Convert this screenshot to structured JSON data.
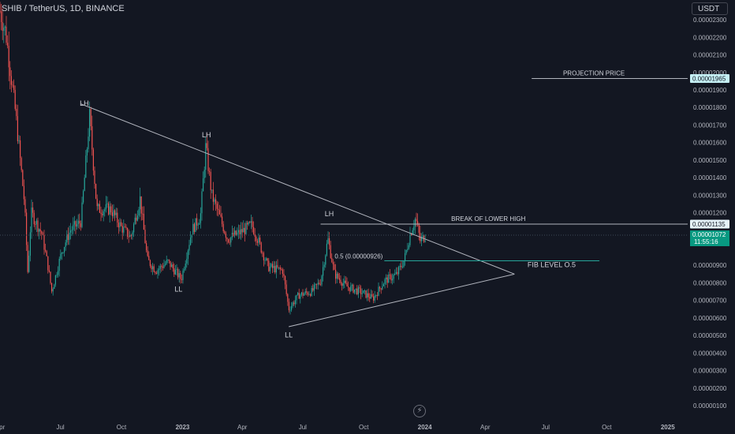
{
  "header": {
    "symbol": "SHIB / TetherUS, 1D, BINANCE",
    "currency_button": "USDT"
  },
  "colors": {
    "background": "#131722",
    "text": "#d1d4dc",
    "up": "#26a69a",
    "down": "#ef5350",
    "trendline": "#b2b5be",
    "fib_line": "#26a69a",
    "projection_tag_bg": "#c5f0f5",
    "last_price_bg": "#089981"
  },
  "icons": {
    "logo": "tradingview-logo-icon"
  },
  "chart_data": {
    "type": "candlestick",
    "symbol": "SHIB / TetherUS",
    "interval": "1D",
    "exchange": "BINANCE",
    "x_range": [
      "2022-04-01",
      "2025-01-31"
    ],
    "y_range": [
      6e-07,
      2.36e-05
    ],
    "x_ticks": [
      {
        "date": "2022-04-01",
        "label": "Apr"
      },
      {
        "date": "2022-07-01",
        "label": "Jul"
      },
      {
        "date": "2022-10-01",
        "label": "Oct"
      },
      {
        "date": "2023-01-01",
        "label": "2023"
      },
      {
        "date": "2023-04-01",
        "label": "Apr"
      },
      {
        "date": "2023-07-01",
        "label": "Jul"
      },
      {
        "date": "2023-10-01",
        "label": "Oct"
      },
      {
        "date": "2024-01-01",
        "label": "2024"
      },
      {
        "date": "2024-04-01",
        "label": "Apr"
      },
      {
        "date": "2024-07-01",
        "label": "Jul"
      },
      {
        "date": "2024-10-01",
        "label": "Oct"
      },
      {
        "date": "2025-01-01",
        "label": "2025"
      }
    ],
    "y_ticks": [
      {
        "value": 2.3e-05,
        "label": "0.00002300"
      },
      {
        "value": 2.2e-05,
        "label": "0.00002200"
      },
      {
        "value": 2.1e-05,
        "label": "0.00002100"
      },
      {
        "value": 2e-05,
        "label": "0.00002000"
      },
      {
        "value": 1.9e-05,
        "label": "0.00001900"
      },
      {
        "value": 1.8e-05,
        "label": "0.00001800"
      },
      {
        "value": 1.7e-05,
        "label": "0.00001700"
      },
      {
        "value": 1.6e-05,
        "label": "0.00001600"
      },
      {
        "value": 1.5e-05,
        "label": "0.00001500"
      },
      {
        "value": 1.4e-05,
        "label": "0.00001400"
      },
      {
        "value": 1.3e-05,
        "label": "0.00001300"
      },
      {
        "value": 1.2e-05,
        "label": "0.00001200"
      },
      {
        "value": 9e-06,
        "label": "0.00000900"
      },
      {
        "value": 8e-06,
        "label": "0.00000800"
      },
      {
        "value": 7e-06,
        "label": "0.00000700"
      },
      {
        "value": 6e-06,
        "label": "0.00000600"
      },
      {
        "value": 5e-06,
        "label": "0.00000500"
      },
      {
        "value": 4e-06,
        "label": "0.00000400"
      },
      {
        "value": 3e-06,
        "label": "0.00000300"
      },
      {
        "value": 2e-06,
        "label": "0.00000200"
      },
      {
        "value": 1e-06,
        "label": "0.00000100"
      }
    ],
    "price_path": [
      [
        "2022-04-01",
        2.35e-05
      ],
      [
        "2022-04-10",
        2.22e-05
      ],
      [
        "2022-04-25",
        1.75e-05
      ],
      [
        "2022-05-08",
        1.25e-05
      ],
      [
        "2022-05-13",
        8.5e-06
      ],
      [
        "2022-05-18",
        1.2e-05
      ],
      [
        "2022-06-03",
        1.08e-05
      ],
      [
        "2022-06-12",
        9e-06
      ],
      [
        "2022-06-18",
        7.5e-06
      ],
      [
        "2022-07-03",
        9.8e-06
      ],
      [
        "2022-07-16",
        1.1e-05
      ],
      [
        "2022-08-01",
        1.15e-05
      ],
      [
        "2022-08-14",
        1.75e-05
      ],
      [
        "2022-08-25",
        1.22e-05
      ],
      [
        "2022-09-15",
        1.22e-05
      ],
      [
        "2022-09-30",
        1.12e-05
      ],
      [
        "2022-10-15",
        1.06e-05
      ],
      [
        "2022-10-29",
        1.28e-05
      ],
      [
        "2022-11-09",
        9.3e-06
      ],
      [
        "2022-11-22",
        8.7e-06
      ],
      [
        "2022-12-10",
        9.2e-06
      ],
      [
        "2022-12-30",
        8.2e-06
      ],
      [
        "2023-01-15",
        1.1e-05
      ],
      [
        "2023-01-28",
        1.18e-05
      ],
      [
        "2023-02-05",
        1.58e-05
      ],
      [
        "2023-02-14",
        1.3e-05
      ],
      [
        "2023-03-10",
        1.05e-05
      ],
      [
        "2023-03-30",
        1.09e-05
      ],
      [
        "2023-04-15",
        1.13e-05
      ],
      [
        "2023-04-22",
        1.07e-05
      ],
      [
        "2023-05-10",
        8.9e-06
      ],
      [
        "2023-06-01",
        8.7e-06
      ],
      [
        "2023-06-10",
        6.5e-06
      ],
      [
        "2023-06-25",
        7.3e-06
      ],
      [
        "2023-07-15",
        7.5e-06
      ],
      [
        "2023-07-28",
        8.1e-06
      ],
      [
        "2023-08-08",
        1.05e-05
      ],
      [
        "2023-08-18",
        8.5e-06
      ],
      [
        "2023-09-05",
        7.8e-06
      ],
      [
        "2023-10-01",
        7.4e-06
      ],
      [
        "2023-10-15",
        7.1e-06
      ],
      [
        "2023-11-01",
        8.1e-06
      ],
      [
        "2023-11-20",
        8.5e-06
      ],
      [
        "2023-12-01",
        9.3e-06
      ],
      [
        "2023-12-10",
        1.08e-05
      ],
      [
        "2023-12-18",
        1.17e-05
      ],
      [
        "2023-12-25",
        1.04e-05
      ],
      [
        "2024-01-02",
        1.07e-05
      ]
    ],
    "last_price": {
      "value": 1.072e-05,
      "label": "0.00001072",
      "countdown": "11:55:16"
    },
    "annotations": [
      {
        "type": "label",
        "text": "LH",
        "date": "2022-08-06",
        "value": 1.81e-05
      },
      {
        "type": "label",
        "text": "LH",
        "date": "2023-02-06",
        "value": 1.63e-05
      },
      {
        "type": "label",
        "text": "LH",
        "date": "2023-08-10",
        "value": 1.18e-05
      },
      {
        "type": "label",
        "text": "LL",
        "date": "2022-12-26",
        "value": 7.5e-06
      },
      {
        "type": "label",
        "text": "LL",
        "date": "2023-06-10",
        "value": 4.9e-06
      },
      {
        "type": "trendline",
        "from": [
          "2022-08-01",
          1.82e-05
        ],
        "to": [
          "2024-05-15",
          8.5e-06
        ]
      },
      {
        "type": "trendline",
        "from": [
          "2023-06-10",
          5.5e-06
        ],
        "to": [
          "2024-05-15",
          8.5e-06
        ]
      },
      {
        "type": "hline",
        "text": "PROJECTION PRICE",
        "from_date": "2024-06-10",
        "value": 1.965e-05,
        "tag": "0.00001965"
      },
      {
        "type": "hline",
        "text": "BREAK OF LOWER HIGH",
        "from_date": "2023-07-28",
        "value": 1.135e-05,
        "tag": "0.00001135"
      },
      {
        "type": "fib",
        "text": "0.5 (0.00000926)",
        "from_date": "2023-11-01",
        "to_date": "2024-09-20",
        "value": 9.26e-06
      },
      {
        "type": "label",
        "text": "FIB LEVEL O.5",
        "date": "2024-07-10",
        "value": 8.9e-06
      }
    ]
  }
}
